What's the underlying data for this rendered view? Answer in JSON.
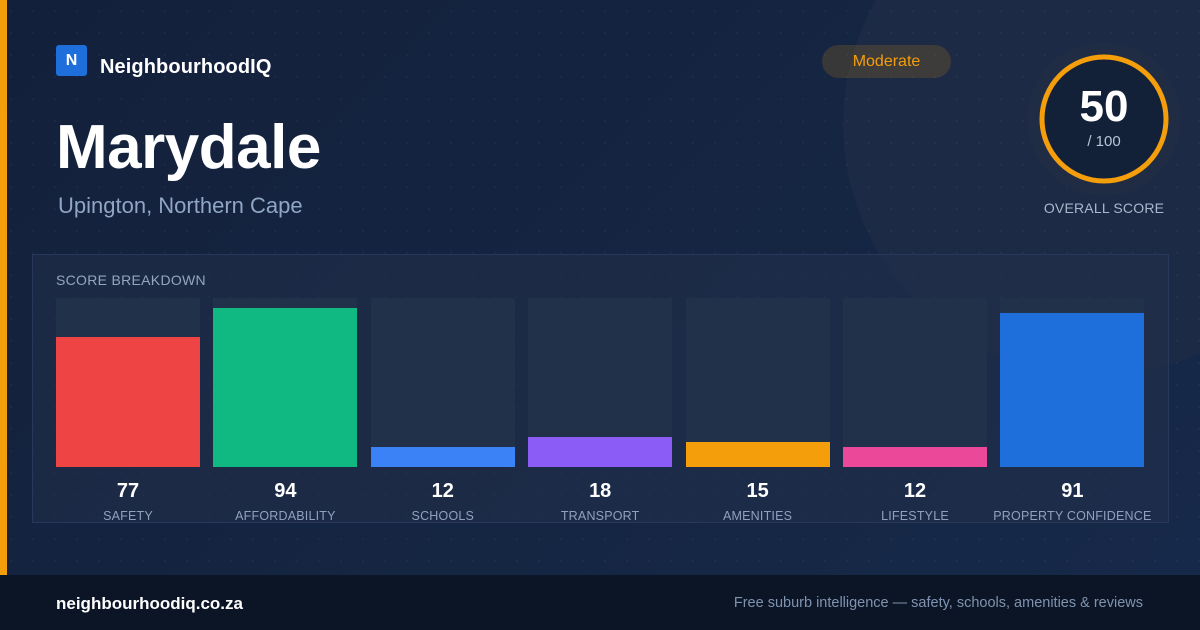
{
  "brand": {
    "badge_letter": "N",
    "name": "NeighbourhoodIQ",
    "badge_color": "#1e6fdc"
  },
  "suburb": {
    "name": "Marydale",
    "location": "Upington, Northern Cape"
  },
  "rating": {
    "label": "Moderate",
    "color": "#f59e0b"
  },
  "overall": {
    "score": "50",
    "max_label": "/ 100",
    "score_fraction": 0.5,
    "label": "OVERALL SCORE",
    "ring_color": "#f59e0b"
  },
  "breakdown": {
    "title": "SCORE BREAKDOWN",
    "max": 100
  },
  "chart_data": {
    "type": "bar",
    "title": "SCORE BREAKDOWN",
    "categories": [
      "SAFETY",
      "AFFORDABILITY",
      "SCHOOLS",
      "TRANSPORT",
      "AMENITIES",
      "LIFESTYLE",
      "PROPERTY CONFIDENCE"
    ],
    "values": [
      77,
      94,
      12,
      18,
      15,
      12,
      91
    ],
    "colors": [
      "#ef4444",
      "#10b981",
      "#3b82f6",
      "#8b5cf6",
      "#f59e0b",
      "#ec4899",
      "#1e6fdc"
    ],
    "ylim": [
      0,
      100
    ],
    "grid": false
  },
  "footer": {
    "domain": "neighbourhoodiq.co.za",
    "tagline": "Free suburb intelligence — safety, schools, amenities & reviews"
  }
}
